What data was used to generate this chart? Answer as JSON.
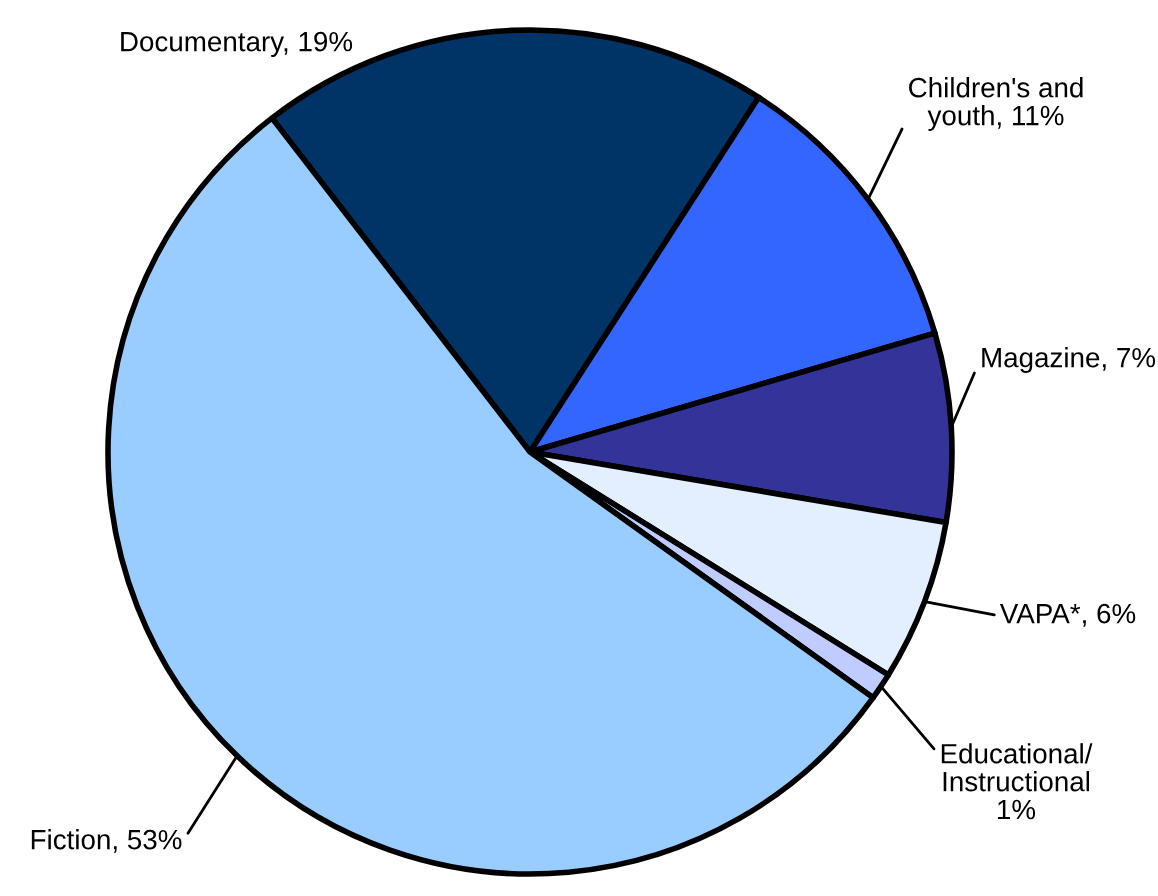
{
  "chart_data": {
    "type": "pie",
    "categories": [
      "Documentary",
      "Children's and youth",
      "Magazine",
      "VAPA*",
      "Educational/Instructional",
      "Fiction"
    ],
    "values": [
      19,
      11,
      7,
      6,
      1,
      53
    ],
    "value_labels": [
      "19%",
      "11%",
      "7%",
      "6%",
      "1%",
      "53%"
    ],
    "colors": [
      "#003366",
      "#3366ff",
      "#333399",
      "#e3eeff",
      "#c0ccff",
      "#99ccff"
    ]
  }
}
